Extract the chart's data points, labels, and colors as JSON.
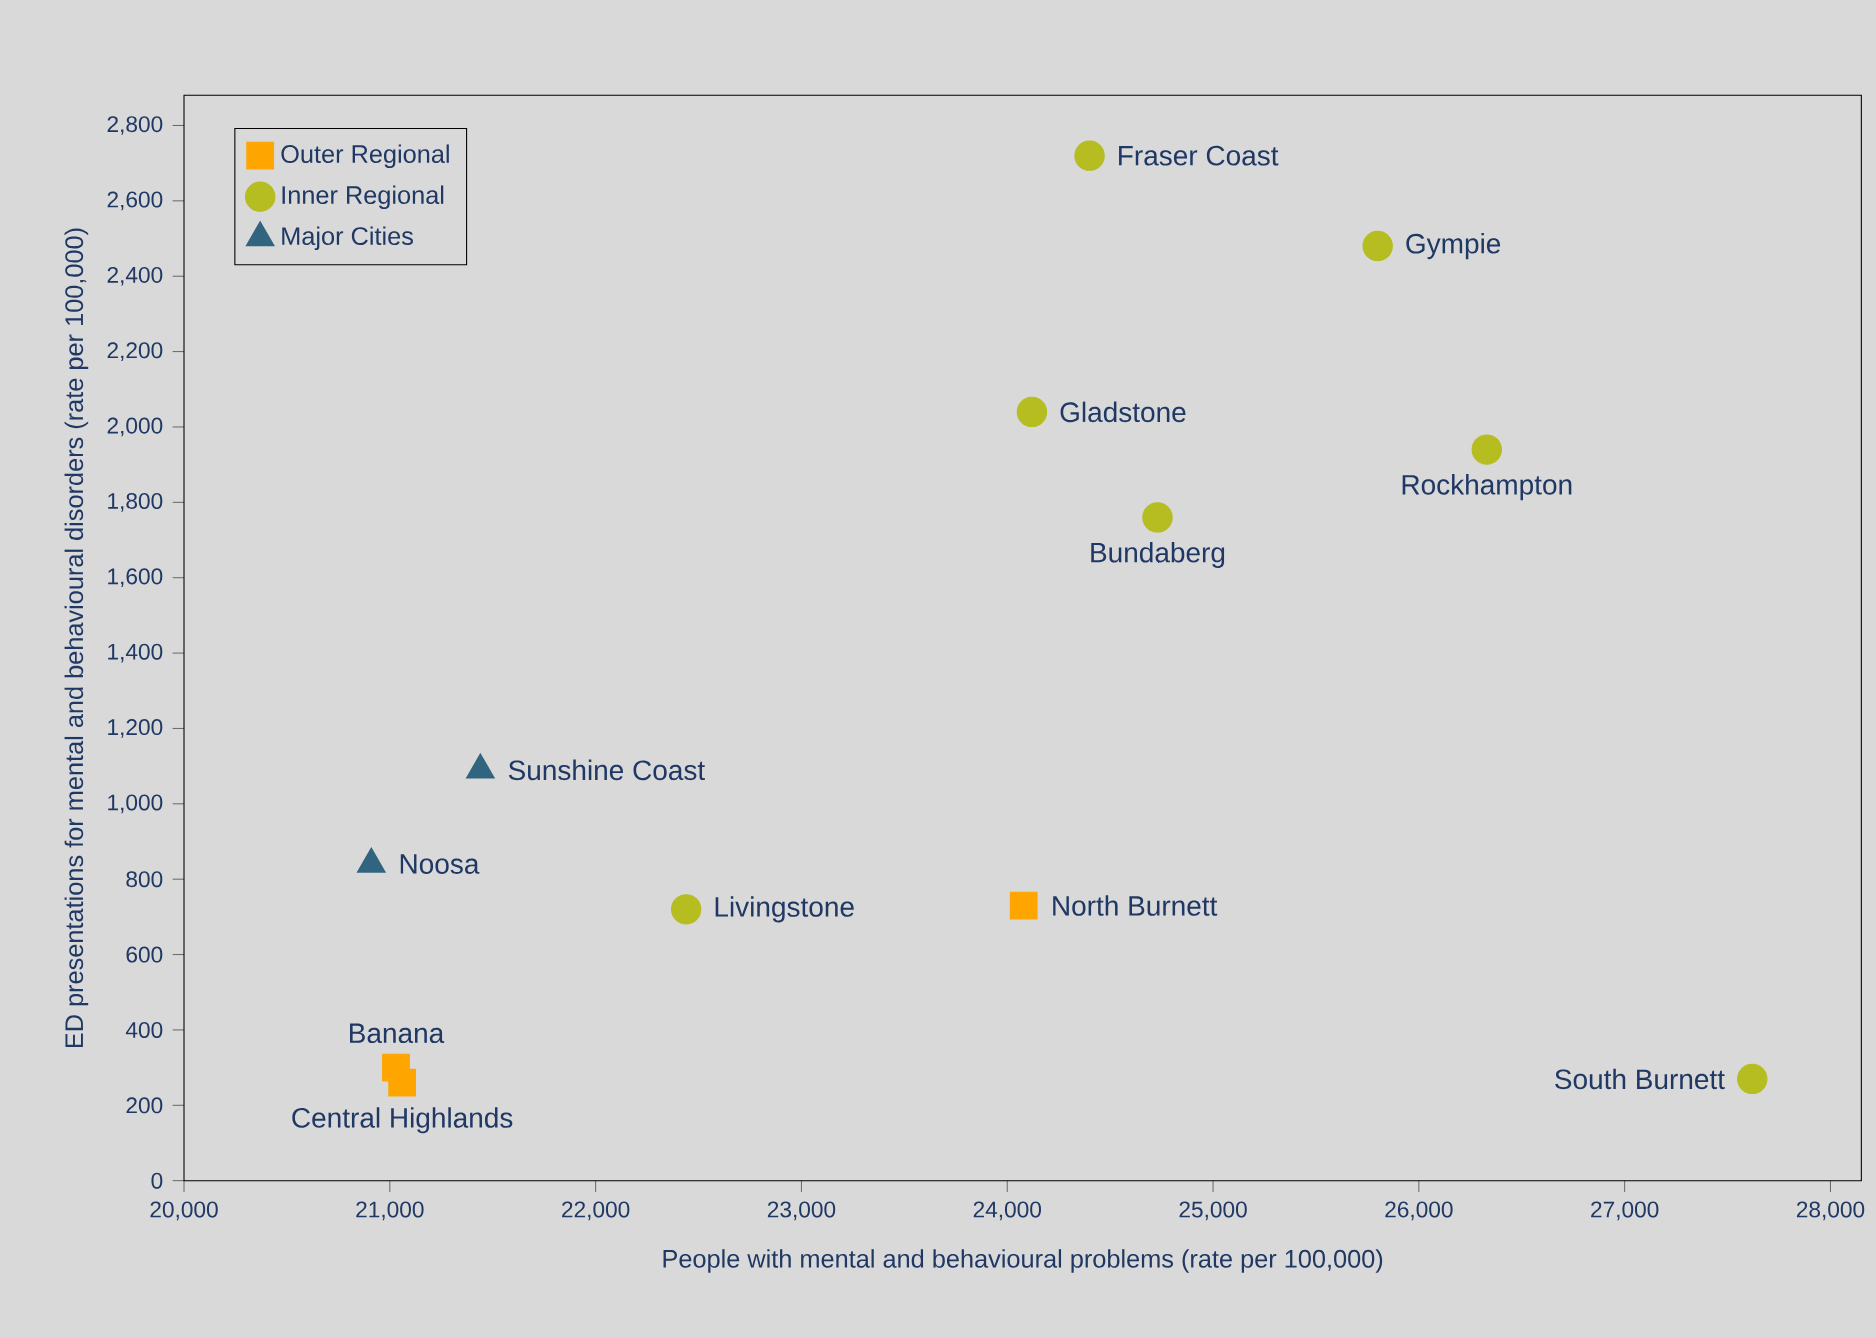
{
  "chart_data": {
    "type": "scatter",
    "xlabel": "People with mental and behavioural problems (rate per 100,000)",
    "ylabel": "ED presentations for mental and behavioural disorders (rate per 100,000)",
    "series": [
      {
        "name": "Outer Regional",
        "color": "#ffa500",
        "marker": "square",
        "x": [
          24080,
          21030,
          21060
        ],
        "values": [
          730,
          300,
          260
        ]
      },
      {
        "name": "Inner Regional",
        "color": "#b5bd20",
        "marker": "circle",
        "x": [
          24400,
          25800,
          24120,
          26330,
          24730,
          22440,
          27620
        ],
        "values": [
          2720,
          2480,
          2040,
          1940,
          1760,
          720,
          270
        ]
      },
      {
        "name": "Major Cities",
        "color": "#31647f",
        "marker": "triangle",
        "x": [
          21440,
          20910
        ],
        "values": [
          1090,
          840
        ]
      }
    ],
    "annotations": [
      {
        "text": "Fraser Coast",
        "x": 24400,
        "y": 2720
      },
      {
        "text": "Gympie",
        "x": 25800,
        "y": 2480
      },
      {
        "text": "Gladstone",
        "x": 24120,
        "y": 2040
      },
      {
        "text": "Rockhampton",
        "x": 26330,
        "y": 1940
      },
      {
        "text": "Bundaberg",
        "x": 24730,
        "y": 1760
      },
      {
        "text": "Sunshine Coast",
        "x": 21440,
        "y": 1090
      },
      {
        "text": "Noosa",
        "x": 20910,
        "y": 840
      },
      {
        "text": "Livingstone",
        "x": 22440,
        "y": 720
      },
      {
        "text": "North Burnett",
        "x": 24080,
        "y": 730
      },
      {
        "text": "Banana",
        "x": 21030,
        "y": 300
      },
      {
        "text": "Central Highlands",
        "x": 21060,
        "y": 260
      },
      {
        "text": "South Burnett",
        "x": 27620,
        "y": 270
      }
    ],
    "xlim": [
      20000,
      28150
    ],
    "ylim": [
      0,
      2880
    ],
    "xticks": [
      {
        "value": 20000,
        "label": "20,000"
      },
      {
        "value": 21000,
        "label": "21,000"
      },
      {
        "value": 22000,
        "label": "22,000"
      },
      {
        "value": 23000,
        "label": "23,000"
      },
      {
        "value": 24000,
        "label": "24,000"
      },
      {
        "value": 25000,
        "label": "25,000"
      },
      {
        "value": 26000,
        "label": "26,000"
      },
      {
        "value": 27000,
        "label": "27,000"
      },
      {
        "value": 28000,
        "label": "28,000"
      }
    ],
    "yticks": [
      0,
      {
        "value": 200,
        "label": "200"
      },
      {
        "value": 400,
        "label": "400"
      },
      {
        "value": 600,
        "label": "600"
      },
      {
        "value": 800,
        "label": "800"
      },
      {
        "value": 1000,
        "label": "1,000"
      },
      {
        "value": 1200,
        "label": "1,200"
      },
      {
        "value": 1400,
        "label": "1,400"
      },
      {
        "value": 1600,
        "label": "1,600"
      },
      {
        "value": 1800,
        "label": "1,800"
      },
      {
        "value": 2000,
        "label": "2,000"
      },
      {
        "value": 2200,
        "label": "2,200"
      },
      {
        "value": 2400,
        "label": "2,400"
      },
      {
        "value": 2600,
        "label": "2,600"
      },
      {
        "value": 2800,
        "label": "2,800"
      }
    ],
    "grid": false,
    "legend": "top left"
  }
}
